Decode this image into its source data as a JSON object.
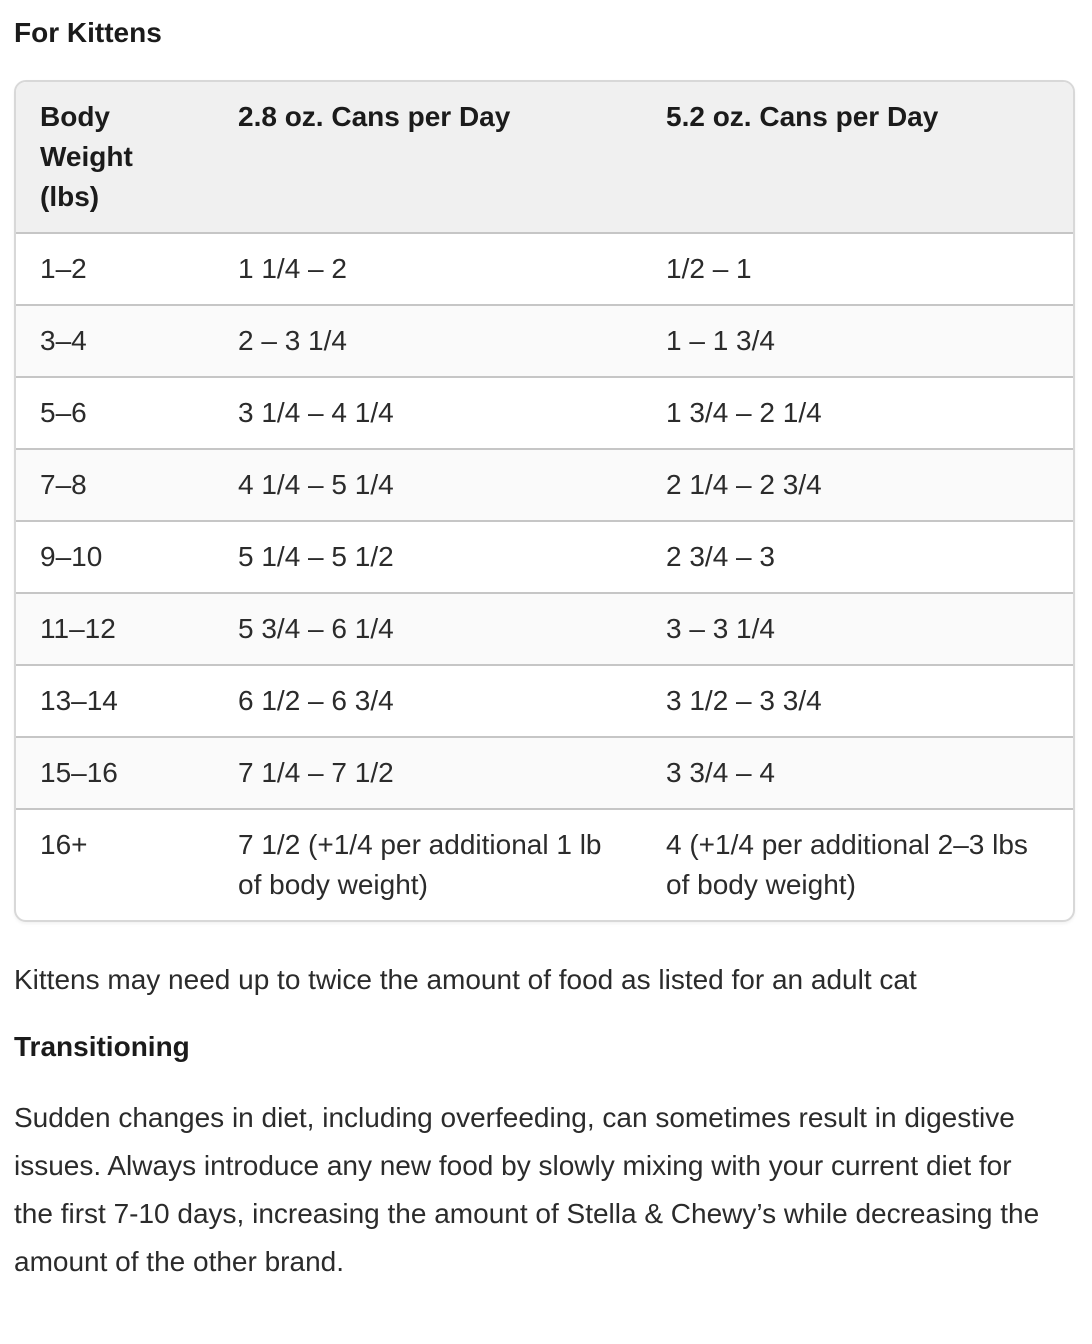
{
  "page": {
    "kittens_heading": "For Kittens",
    "note": "Kittens may need up to twice the amount of food as listed for an adult cat",
    "transitioning_heading": "Transitioning",
    "transitioning_text": "Sudden changes in diet, including overfeeding, can sometimes result in digestive issues. Always introduce any new food by slowly mixing with your current diet for the first 7-10 days, increasing the amount of Stella & Chewy’s while decreasing the amount of the other brand."
  },
  "table": {
    "columns": [
      "Body Weight (lbs)",
      "2.8 oz. Cans per Day",
      "5.2 oz. Cans per Day"
    ],
    "rows": [
      [
        "1–2",
        "1 1/4 – 2",
        "1/2 – 1"
      ],
      [
        "3–4",
        "2 – 3 1/4",
        "1 – 1 3/4"
      ],
      [
        "5–6",
        "3 1/4 – 4 1/4",
        "1 3/4 – 2 1/4"
      ],
      [
        "7–8",
        "4 1/4 – 5 1/4",
        "2 1/4 – 2 3/4"
      ],
      [
        "9–10",
        "5 1/4 – 5 1/2",
        "2 3/4 – 3"
      ],
      [
        "11–12",
        "5 3/4 – 6 1/4",
        "3 – 3 1/4"
      ],
      [
        "13–14",
        "6 1/2 – 6 3/4",
        "3 1/2 – 3 3/4"
      ],
      [
        "15–16",
        "7 1/4 – 7 1/2",
        "3 3/4 – 4"
      ],
      [
        "16+",
        "7 1/2 (+1/4 per additional 1 lb of body weight)",
        "4 (+1/4 per additional 2–3 lbs of body weight)"
      ]
    ]
  },
  "colors": {
    "header_bg": "#f0f0f0",
    "row_alt_bg": "#fafafa",
    "outer_border": "#d8d8d8",
    "row_divider": "#c6c6c6",
    "text_color": "#2b2b2b",
    "heading_color": "#1b1b1b"
  }
}
